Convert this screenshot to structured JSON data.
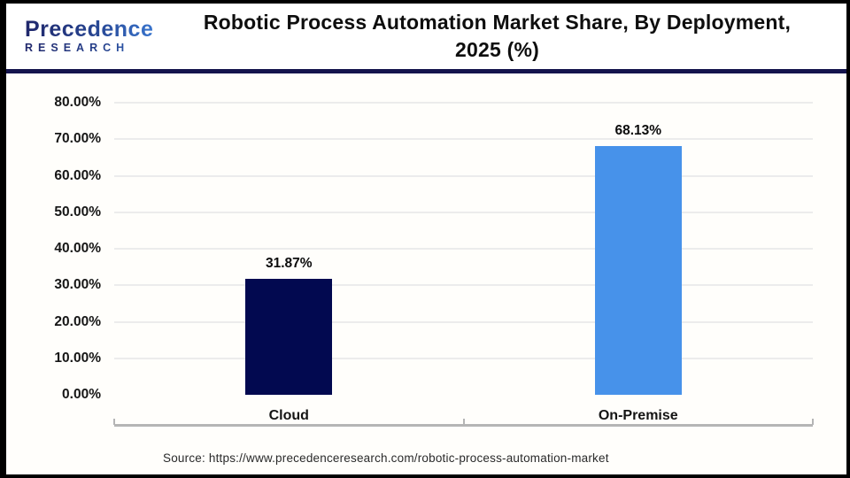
{
  "header": {
    "logo": {
      "line1": "Precedence",
      "line2": "RESEARCH"
    },
    "title_line1": "Robotic Process Automation Market Share, By Deployment,",
    "title_line2": "2025 (%)"
  },
  "chart_data": {
    "type": "bar",
    "title": "Robotic Process Automation Market Share, By Deployment, 2025 (%)",
    "categories": [
      "Cloud",
      "On-Premise"
    ],
    "values": [
      31.87,
      68.13
    ],
    "value_labels": [
      "31.87%",
      "68.13%"
    ],
    "bar_colors": [
      "#020950",
      "#4792EA"
    ],
    "xlabel": "",
    "ylabel": "",
    "ylim": [
      0,
      80
    ],
    "y_tick_step": 10,
    "y_tick_labels": [
      "0.00%",
      "10.00%",
      "20.00%",
      "30.00%",
      "40.00%",
      "50.00%",
      "60.00%",
      "70.00%",
      "80.00%"
    ],
    "grid": true,
    "legend": false,
    "gridline_color": "#ececec",
    "axis_color": "#b5b5b5"
  },
  "footer": {
    "source": "Source: https://www.precedenceresearch.com/robotic-process-automation-market"
  }
}
